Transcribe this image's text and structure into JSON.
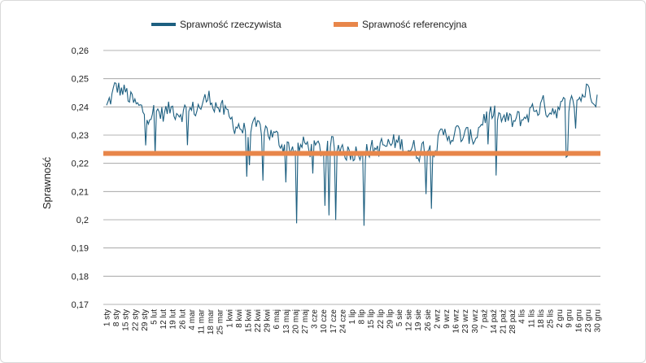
{
  "chart_data": {
    "type": "line",
    "title": "",
    "xlabel": "",
    "ylabel": "Sprawność",
    "ylim": [
      0.17,
      0.26
    ],
    "yticks": [
      "0,26",
      "0,25",
      "0,24",
      "0,23",
      "0,22",
      "0,21",
      "0,2",
      "0,19",
      "0,18",
      "0,17"
    ],
    "ytick_values": [
      0.26,
      0.25,
      0.24,
      0.23,
      0.22,
      0.21,
      0.2,
      0.19,
      0.18,
      0.17
    ],
    "grid": true,
    "legend_position": "top",
    "x_tick_labels": [
      "1 sty",
      "8 sty",
      "15 sty",
      "22 sty",
      "29 sty",
      "5 lut",
      "12 lut",
      "19 lut",
      "26 lut",
      "4 mar",
      "11 mar",
      "18 mar",
      "25 mar",
      "1 kwi",
      "8 kwi",
      "15 kwi",
      "22 kwi",
      "29 kwi",
      "6 maj",
      "13 maj",
      "20 maj",
      "27 maj",
      "3 cze",
      "10 cze",
      "17 cze",
      "24 cze",
      "1 lip",
      "8 lip",
      "15 lip",
      "22 lip",
      "29 lip",
      "5 sie",
      "12 sie",
      "19 sie",
      "26 sie",
      "2 wrz",
      "9 wrz",
      "16 wrz",
      "23 wrz",
      "30 wrz",
      "7 paź",
      "14 paź",
      "21 paź",
      "28 paź",
      "4 lis",
      "11 lis",
      "18 lis",
      "25 lis",
      "2 gru",
      "9 gru",
      "16 gru",
      "23 gru",
      "30 gru"
    ],
    "series": [
      {
        "name": "Sprawność rzeczywista",
        "color": "#1d5f80",
        "x_day_step": 7,
        "values": [
          0.2395,
          0.247,
          0.245,
          0.2405,
          0.238,
          0.2385,
          0.2375,
          0.2395,
          0.2385,
          0.2385,
          0.2405,
          0.2435,
          0.2395,
          0.2355,
          0.2335,
          0.2305,
          0.232,
          0.232,
          0.2285,
          0.2265,
          0.225,
          0.2265,
          0.225,
          0.2245,
          0.2265,
          0.2255,
          0.224,
          0.2255,
          0.2245,
          0.2255,
          0.2265,
          0.2275,
          0.2255,
          0.2245,
          0.226,
          0.227,
          0.2305,
          0.2305,
          0.229,
          0.2295,
          0.2365,
          0.2375,
          0.2355,
          0.2345,
          0.2355,
          0.2385,
          0.2405,
          0.2395,
          0.2395,
          0.2405,
          0.2425,
          0.2465,
          0.2445
        ]
      },
      {
        "name": "Sprawność referencyjna",
        "color": "#e8864a",
        "value": 0.2235
      }
    ]
  }
}
